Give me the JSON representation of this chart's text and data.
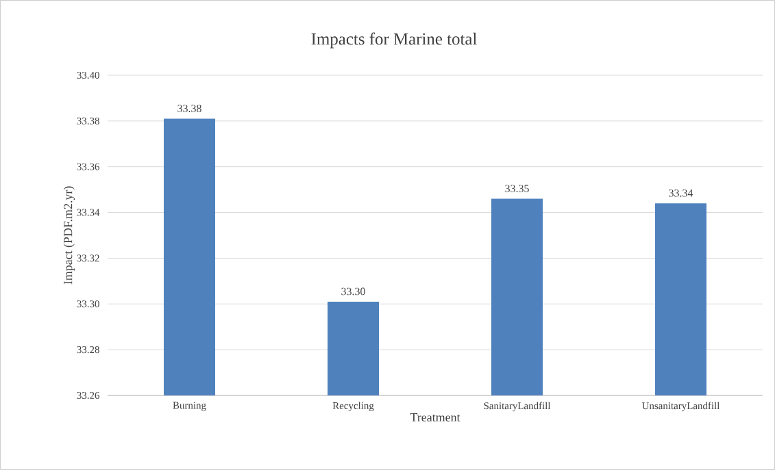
{
  "chart_data": {
    "type": "bar",
    "title": "Impacts for  Marine total",
    "xlabel": "Treatment",
    "ylabel": "Impact (PDF.m2.yr)",
    "categories": [
      "Burning",
      "Recycling",
      "SanitaryLandfill",
      "UnsanitaryLandfill"
    ],
    "values": [
      33.381,
      33.301,
      33.346,
      33.344
    ],
    "value_labels": [
      "33.38",
      "33.30",
      "33.35",
      "33.34"
    ],
    "color": "#4f81bd",
    "ylim": [
      33.26,
      33.4
    ],
    "yticks": [
      {
        "value": 33.26,
        "label": "33.26"
      },
      {
        "value": 33.28,
        "label": "33.28"
      },
      {
        "value": 33.3,
        "label": "33.30"
      },
      {
        "value": 33.32,
        "label": "33.32"
      },
      {
        "value": 33.34,
        "label": "33.34"
      },
      {
        "value": 33.36,
        "label": "33.36"
      },
      {
        "value": 33.38,
        "label": "33.38"
      },
      {
        "value": 33.4,
        "label": "33.40"
      }
    ],
    "grid": "y"
  }
}
